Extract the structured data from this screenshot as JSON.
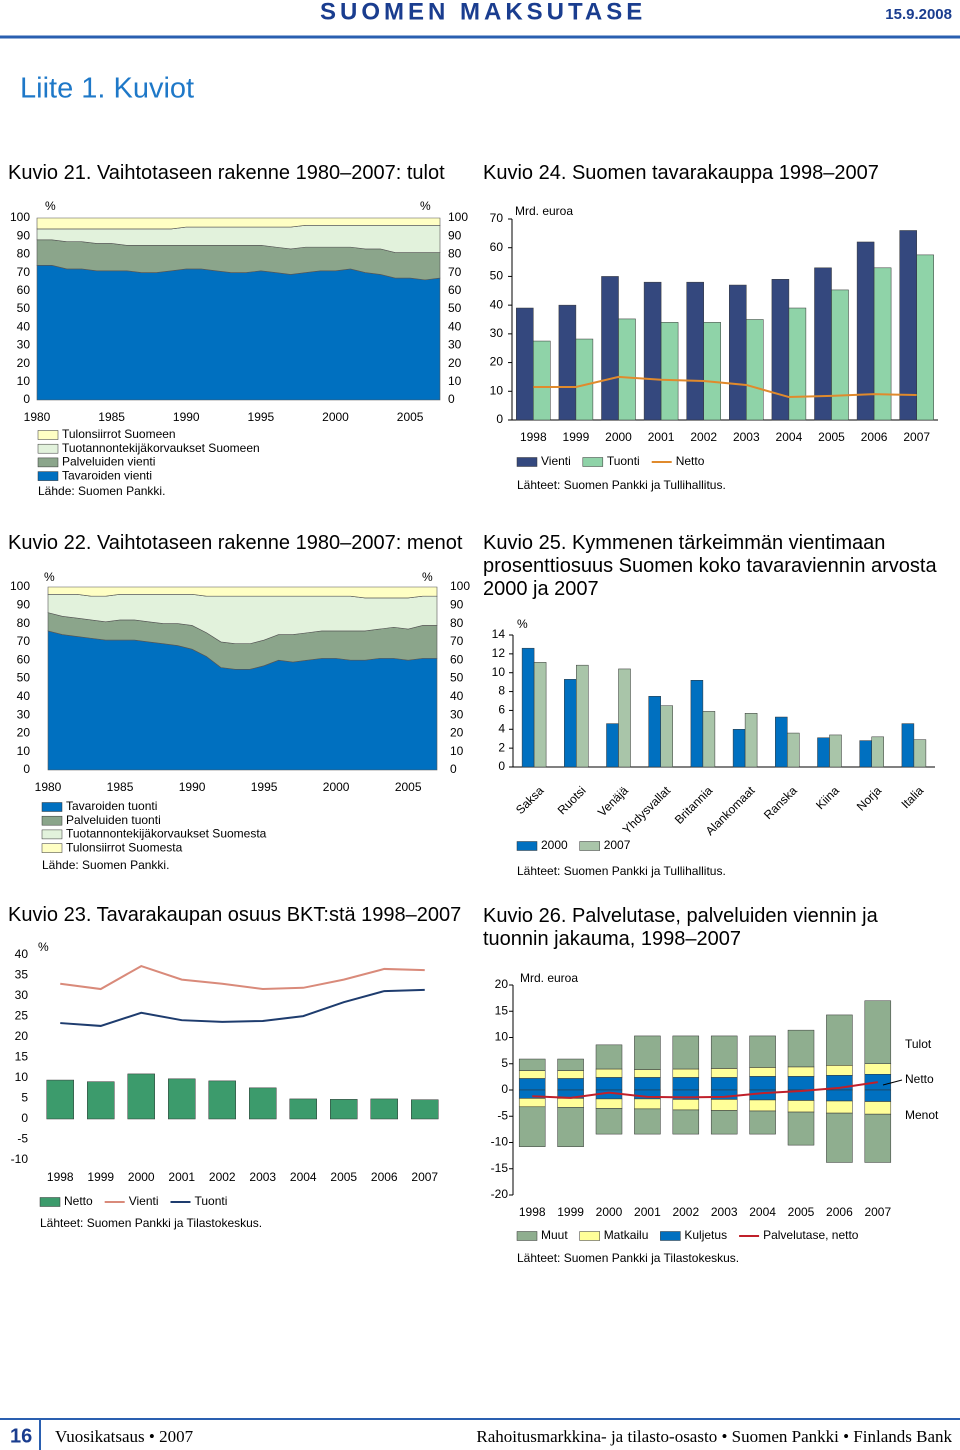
{
  "header": {
    "title": "SUOMEN MAKSUTASE",
    "date": "15.9.2008"
  },
  "page_title": "Liite 1. Kuviot",
  "footer": {
    "page": "16",
    "left": "Vuosikatsaus • 2007",
    "right": "Rahoitusmarkkina- ja tilasto-osasto • Suomen Pankki • Finlands Bank"
  },
  "chart_data": [
    {
      "type": "area",
      "title": "Kuvio 21. Vaihtotaseen rakenne 1980–2007: tulot",
      "y_label": "%",
      "right_axis": true,
      "legend_reversed": true,
      "x": [
        1980,
        1981,
        1982,
        1983,
        1984,
        1985,
        1986,
        1987,
        1988,
        1989,
        1990,
        1991,
        1992,
        1993,
        1994,
        1995,
        1996,
        1997,
        1998,
        1999,
        2000,
        2001,
        2002,
        2003,
        2004,
        2005,
        2006,
        2007
      ],
      "xlim": [
        1980,
        2007
      ],
      "xticks": [
        1980,
        1985,
        1990,
        1995,
        2000,
        2005
      ],
      "ylim": [
        0,
        100
      ],
      "yticks": [
        0,
        10,
        20,
        30,
        40,
        50,
        60,
        70,
        80,
        90,
        100
      ],
      "series": [
        {
          "name": "Tavaroiden vienti",
          "color": "#0070c0",
          "values": [
            74,
            74,
            72,
            72,
            71,
            71,
            71,
            70,
            70,
            71,
            72,
            72,
            71,
            70,
            70,
            71,
            70,
            69,
            70,
            71,
            71,
            72,
            70,
            69,
            67,
            67,
            66,
            67
          ]
        },
        {
          "name": "Palveluiden vienti",
          "color": "#8ba58b",
          "values": [
            14,
            14,
            15,
            15,
            15,
            15,
            14,
            15,
            15,
            14,
            13,
            13,
            14,
            15,
            15,
            14,
            14,
            14,
            14,
            13,
            13,
            12,
            13,
            14,
            14,
            14,
            15,
            14
          ]
        },
        {
          "name": "Tuotannontekijäkorvaukset Suomeen",
          "color": "#e2f2dc",
          "values": [
            6,
            6,
            7,
            7,
            8,
            8,
            9,
            9,
            9,
            9,
            10,
            10,
            10,
            10,
            10,
            10,
            11,
            12,
            12,
            12,
            12,
            12,
            13,
            13,
            15,
            15,
            15,
            15
          ]
        },
        {
          "name": "Tulonsiirrot Suomeen",
          "color": "#ffffc4",
          "values": [
            6,
            6,
            6,
            6,
            6,
            6,
            6,
            6,
            6,
            6,
            5,
            5,
            5,
            5,
            5,
            5,
            5,
            5,
            4,
            4,
            4,
            4,
            4,
            4,
            4,
            4,
            4,
            4
          ]
        }
      ],
      "source": "Lähde: Suomen Pankki."
    },
    {
      "type": "area",
      "title": "Kuvio 22. Vaihtotaseen rakenne 1980–2007: menot",
      "y_label": "%",
      "right_axis": true,
      "x": [
        1980,
        1981,
        1982,
        1983,
        1984,
        1985,
        1986,
        1987,
        1988,
        1989,
        1990,
        1991,
        1992,
        1993,
        1994,
        1995,
        1996,
        1997,
        1998,
        1999,
        2000,
        2001,
        2002,
        2003,
        2004,
        2005,
        2006,
        2007
      ],
      "xlim": [
        1980,
        2007
      ],
      "xticks": [
        1980,
        1985,
        1990,
        1995,
        2000,
        2005
      ],
      "ylim": [
        0,
        100
      ],
      "yticks": [
        0,
        10,
        20,
        30,
        40,
        50,
        60,
        70,
        80,
        90,
        100
      ],
      "series": [
        {
          "name": "Tavaroiden tuonti",
          "color": "#0070c0",
          "values": [
            76,
            74,
            73,
            72,
            71,
            71,
            71,
            70,
            69,
            68,
            66,
            62,
            56,
            55,
            55,
            57,
            60,
            59,
            60,
            61,
            61,
            60,
            60,
            61,
            61,
            60,
            61,
            61
          ]
        },
        {
          "name": "Palveluiden tuonti",
          "color": "#8ba58b",
          "values": [
            10,
            10,
            10,
            10,
            10,
            11,
            11,
            11,
            11,
            12,
            13,
            13,
            14,
            14,
            14,
            14,
            14,
            15,
            15,
            15,
            15,
            16,
            16,
            16,
            17,
            17,
            18,
            18
          ]
        },
        {
          "name": "Tuotannontekijäkorvaukset Suomesta",
          "color": "#e2f2dc",
          "values": [
            10,
            12,
            13,
            13,
            14,
            14,
            14,
            15,
            16,
            16,
            17,
            20,
            25,
            26,
            26,
            24,
            21,
            21,
            20,
            19,
            19,
            19,
            18,
            17,
            16,
            17,
            16,
            16
          ]
        },
        {
          "name": "Tulonsiirrot Suomesta",
          "color": "#ffffc4",
          "values": [
            4,
            4,
            4,
            5,
            5,
            4,
            4,
            4,
            4,
            4,
            4,
            5,
            5,
            5,
            5,
            5,
            5,
            5,
            5,
            5,
            5,
            5,
            6,
            6,
            6,
            6,
            5,
            5
          ]
        }
      ],
      "source": "Lähde: Suomen Pankki."
    },
    {
      "type": "bar",
      "title": "Kuvio 23. Tavarakaupan osuus BKT:stä 1998–2007",
      "y_label": "%",
      "categories": [
        "1998",
        "1999",
        "2000",
        "2001",
        "2002",
        "2003",
        "2004",
        "2005",
        "2006",
        "2007"
      ],
      "ylim": [
        -10,
        40
      ],
      "yticks": [
        -10,
        -5,
        0,
        5,
        10,
        15,
        20,
        25,
        30,
        35,
        40
      ],
      "series": [
        {
          "name": "Netto",
          "type": "bar",
          "color": "#3c9b6c",
          "values": [
            9.5,
            9.1,
            11,
            9.8,
            9.3,
            7.6,
            4.9,
            4.8,
            4.9,
            4.7
          ]
        },
        {
          "name": "Vienti",
          "type": "line",
          "color": "#d98a7a",
          "values": [
            33,
            31.7,
            37.3,
            34,
            33,
            31.7,
            32,
            34,
            36.6,
            36.3
          ]
        },
        {
          "name": "Tuonti",
          "type": "line",
          "color": "#1e3c6e",
          "values": [
            23.4,
            22.7,
            25.9,
            24.1,
            23.7,
            23.9,
            25.1,
            28.5,
            31.2,
            31.5
          ]
        }
      ],
      "source": "Lähteet: Suomen Pankki ja Tilastokeskus."
    },
    {
      "type": "bar",
      "title": "Kuvio 24. Suomen tavarakauppa 1998–2007",
      "y_label": "Mrd. euroa",
      "categories": [
        "1998",
        "1999",
        "2000",
        "2001",
        "2002",
        "2003",
        "2004",
        "2005",
        "2006",
        "2007"
      ],
      "ylim": [
        0,
        70
      ],
      "yticks": [
        0,
        10,
        20,
        30,
        40,
        50,
        60,
        70
      ],
      "series": [
        {
          "name": "Vienti",
          "type": "bar",
          "color": "#34487e",
          "values": [
            39,
            40,
            50,
            48,
            48,
            47,
            49,
            53,
            62,
            66
          ]
        },
        {
          "name": "Tuonti",
          "type": "bar",
          "color": "#8fd3a8",
          "values": [
            27.5,
            28.2,
            35.2,
            34,
            34,
            35,
            39,
            45.3,
            53,
            57.5
          ]
        },
        {
          "name": "Netto",
          "type": "line",
          "color": "#e08a2c",
          "values": [
            11.5,
            11.5,
            15,
            14,
            13.6,
            12.2,
            8,
            8.4,
            9,
            8.7
          ]
        }
      ],
      "source": "Lähteet: Suomen Pankki ja Tullihallitus."
    },
    {
      "type": "bar",
      "title": "Kuvio 25. Kymmenen tärkeimmän vientimaan prosenttiosuus Suomen koko tavaraviennin arvosta 2000 ja 2007",
      "y_label": "%",
      "categories": [
        "Saksa",
        "Ruotsi",
        "Venäjä",
        "Yhdysvallat",
        "Britannia",
        "Alankomaat",
        "Ranska",
        "Kiina",
        "Norja",
        "Italia"
      ],
      "ylim": [
        0,
        14
      ],
      "yticks": [
        0,
        2,
        4,
        6,
        8,
        10,
        12,
        14
      ],
      "series": [
        {
          "name": "2000",
          "type": "bar",
          "color": "#0070c0",
          "values": [
            12.6,
            9.3,
            4.6,
            7.5,
            9.2,
            4,
            5.3,
            3.1,
            2.8,
            4.6
          ]
        },
        {
          "name": "2007",
          "type": "bar",
          "color": "#a9c5a9",
          "values": [
            11.1,
            10.8,
            10.4,
            6.5,
            5.9,
            5.7,
            3.6,
            3.4,
            3.2,
            2.9
          ]
        }
      ],
      "source": "Lähteet: Suomen Pankki ja Tullihallitus."
    },
    {
      "type": "bar",
      "stacked": true,
      "title": "Kuvio 26. Palvelutase, palveluiden viennin ja tuonnin jakauma, 1998–2007",
      "y_label": "Mrd. euroa",
      "categories": [
        "1998",
        "1999",
        "2000",
        "2001",
        "2002",
        "2003",
        "2004",
        "2005",
        "2006",
        "2007"
      ],
      "ylim": [
        -20,
        20
      ],
      "yticks": [
        -20,
        -15,
        -10,
        -5,
        0,
        5,
        10,
        15,
        20
      ],
      "series": [
        {
          "name": "Muut",
          "type": "bar",
          "color": "#8fae8f",
          "tulot": [
            2.2,
            2.2,
            4.6,
            6.4,
            6.3,
            6.2,
            6,
            7,
            9.6,
            12
          ],
          "menot": [
            -7.6,
            -7.5,
            -4.9,
            -4.8,
            -4.6,
            -4.5,
            -4.4,
            -6.3,
            -9.4,
            -9.2
          ]
        },
        {
          "name": "Matkailu",
          "type": "bar",
          "color": "#ffff99",
          "tulot": [
            1.5,
            1.5,
            1.6,
            1.5,
            1.6,
            1.7,
            1.7,
            1.8,
            1.9,
            2
          ],
          "menot": [
            -1.6,
            -1.7,
            -1.8,
            -1.9,
            -2,
            -2.1,
            -2.1,
            -2.2,
            -2.3,
            -2.4
          ]
        },
        {
          "name": "Kuljetus",
          "type": "bar",
          "color": "#0070c0",
          "tulot": [
            2.2,
            2.2,
            2.4,
            2.4,
            2.4,
            2.4,
            2.6,
            2.6,
            2.8,
            3
          ],
          "menot": [
            -1.6,
            -1.6,
            -1.7,
            -1.7,
            -1.8,
            -1.8,
            -1.9,
            -2,
            -2.1,
            -2.2
          ]
        },
        {
          "name": "Palvelutase, netto",
          "type": "line",
          "color": "#c0202a",
          "values": [
            -1.2,
            -1.5,
            -0.5,
            -1.3,
            -1.4,
            -1.3,
            -0.6,
            -0.2,
            0.4,
            1.5
          ]
        }
      ],
      "annotations": [
        "Tulot",
        "Netto",
        "Menot"
      ],
      "source": "Lähteet: Suomen Pankki ja Tilastokeskus."
    }
  ]
}
